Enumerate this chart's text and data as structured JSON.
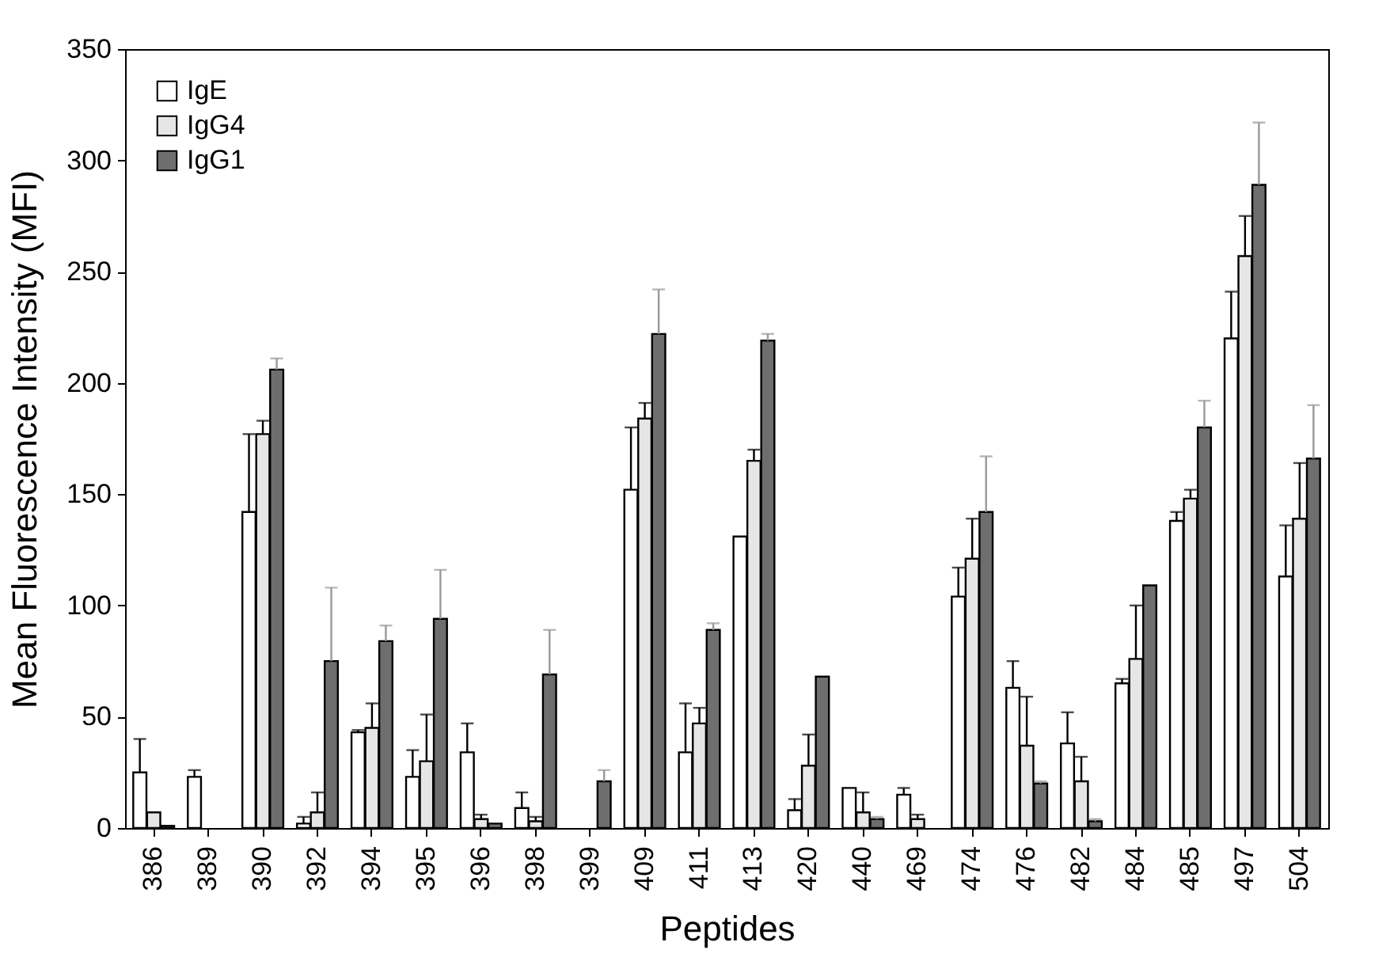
{
  "chart_data": {
    "type": "bar",
    "xlabel": "Peptides",
    "ylabel": "Mean Fluorescence Intensity (MFI)",
    "categories": [
      "386",
      "389",
      "390",
      "392",
      "394",
      "395",
      "396",
      "398",
      "399",
      "409",
      "411",
      "413",
      "420",
      "440",
      "469",
      "474",
      "476",
      "482",
      "484",
      "485",
      "497",
      "504"
    ],
    "series": [
      {
        "name": "IgE",
        "color": "#ffffff",
        "values": [
          25,
          23,
          142,
          2,
          43,
          23,
          34,
          9,
          null,
          152,
          34,
          131,
          8,
          18,
          15,
          104,
          63,
          38,
          65,
          138,
          220,
          113
        ],
        "errors": [
          [
            25,
            40
          ],
          [
            23,
            26
          ],
          [
            142,
            177
          ],
          [
            2,
            5
          ],
          [
            43,
            44
          ],
          [
            23,
            35
          ],
          [
            34,
            47
          ],
          [
            9,
            16
          ],
          null,
          [
            152,
            180
          ],
          [
            34,
            56
          ],
          null,
          [
            8,
            13
          ],
          null,
          [
            15,
            18
          ],
          [
            104,
            117
          ],
          [
            63,
            75
          ],
          [
            38,
            52
          ],
          [
            65,
            67
          ],
          [
            138,
            142
          ],
          [
            220,
            241
          ],
          [
            113,
            136
          ]
        ]
      },
      {
        "name": "IgG4",
        "color": "#e6e6e6",
        "values": [
          7,
          null,
          177,
          7,
          45,
          30,
          4,
          3,
          null,
          184,
          47,
          165,
          28,
          7,
          4,
          121,
          37,
          21,
          76,
          148,
          257,
          139
        ],
        "errors": [
          null,
          null,
          [
            177,
            183
          ],
          [
            7,
            16
          ],
          [
            45,
            56
          ],
          [
            30,
            51
          ],
          [
            4,
            6
          ],
          [
            3,
            5
          ],
          null,
          [
            184,
            191
          ],
          [
            47,
            54
          ],
          [
            165,
            170
          ],
          [
            28,
            42
          ],
          [
            7,
            16
          ],
          [
            4,
            6
          ],
          [
            121,
            139
          ],
          [
            37,
            59
          ],
          [
            21,
            32
          ],
          [
            76,
            100
          ],
          [
            148,
            152
          ],
          [
            257,
            275
          ],
          [
            139,
            164
          ]
        ]
      },
      {
        "name": "IgG1",
        "color": "#6e6e6e",
        "values": [
          1,
          null,
          206,
          75,
          84,
          94,
          2,
          69,
          21,
          222,
          89,
          219,
          68,
          4,
          null,
          142,
          20,
          3,
          109,
          180,
          289,
          166
        ],
        "errors": [
          null,
          null,
          [
            206,
            211
          ],
          [
            75,
            108
          ],
          [
            84,
            91
          ],
          [
            94,
            116
          ],
          null,
          [
            69,
            89
          ],
          [
            21,
            26
          ],
          [
            222,
            242
          ],
          [
            89,
            92
          ],
          [
            219,
            222
          ],
          null,
          [
            4,
            5
          ],
          null,
          [
            142,
            167
          ],
          [
            20,
            21
          ],
          [
            3,
            4
          ],
          null,
          [
            180,
            192
          ],
          [
            289,
            317
          ],
          [
            166,
            190
          ]
        ]
      }
    ],
    "ylim": [
      0,
      350
    ],
    "yticks": [
      0,
      50,
      100,
      150,
      200,
      250,
      300,
      350
    ],
    "grid": false,
    "legend": "top left"
  }
}
